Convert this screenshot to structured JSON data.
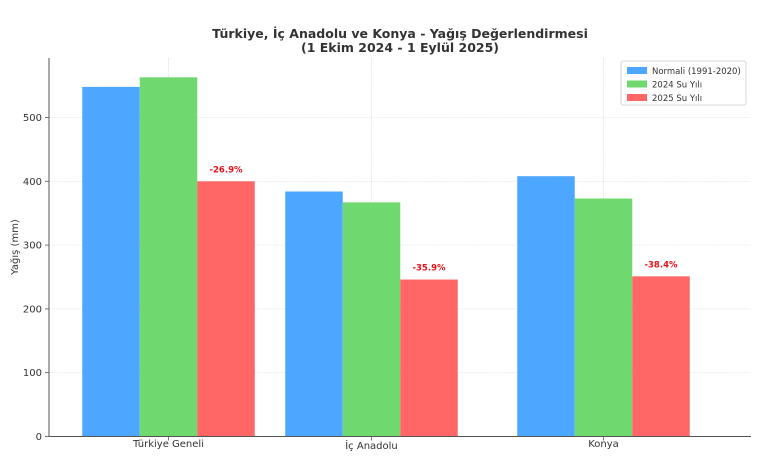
{
  "chart_data": {
    "type": "bar",
    "title": "Türkiye, İç Anadolu ve Konya - Yağış Değerlendirmesi",
    "subtitle": "(1 Ekim 2024 - 1 Eylül 2025)",
    "xlabel": "",
    "ylabel": "Yağış (mm)",
    "ylim": [
      0,
      595
    ],
    "yticks": [
      0,
      100,
      200,
      300,
      400,
      500
    ],
    "grid": true,
    "legend_position": "upper right",
    "categories": [
      "Türkiye Geneli",
      "İç Anadolu",
      "Konya"
    ],
    "series": [
      {
        "name": "Normali (1991-2020)",
        "color": "#4da6ff",
        "values": [
          548,
          384,
          408
        ]
      },
      {
        "name": "2024 Su Yılı",
        "color": "#6fd96f",
        "values": [
          563,
          367,
          373
        ]
      },
      {
        "name": "2025 Su Yılı",
        "color": "#ff6666",
        "values": [
          400,
          246,
          251
        ]
      }
    ],
    "annotations": [
      {
        "category": "Türkiye Geneli",
        "series": "2025 Su Yılı",
        "text": "-26.9%"
      },
      {
        "category": "İç Anadolu",
        "series": "2025 Su Yılı",
        "text": "-35.9%"
      },
      {
        "category": "Konya",
        "series": "2025 Su Yılı",
        "text": "-38.4%"
      }
    ],
    "annotation_color": "#e8111a"
  }
}
